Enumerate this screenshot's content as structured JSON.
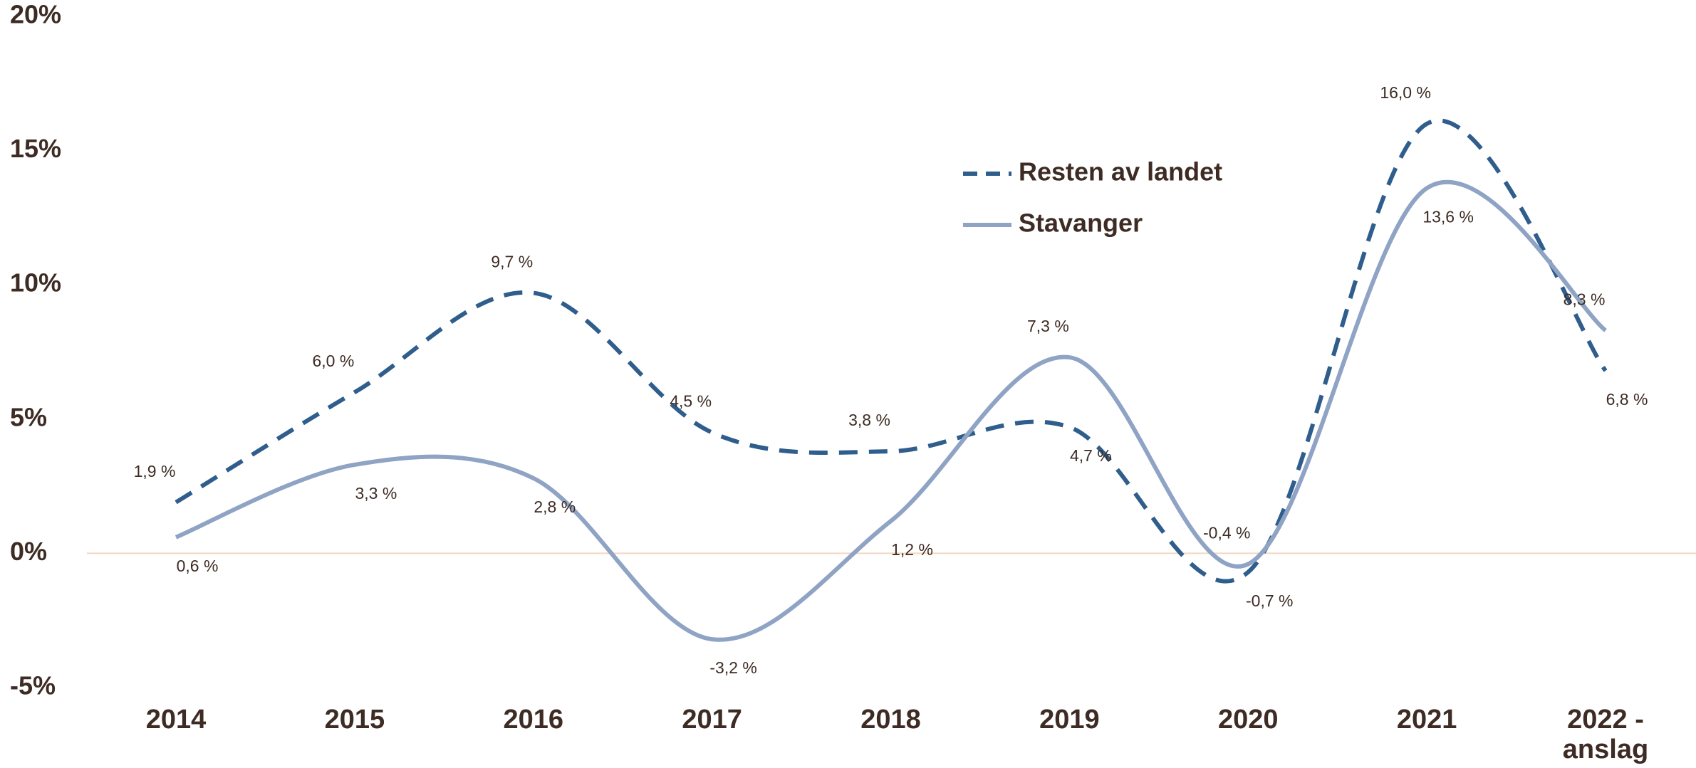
{
  "chart_data": {
    "type": "line",
    "categories": [
      "2014",
      "2015",
      "2016",
      "2017",
      "2018",
      "2019",
      "2020",
      "2021",
      "2022 - anslag"
    ],
    "series": [
      {
        "name": "Resten av landet",
        "color": "#2f5d8c",
        "dashed": true,
        "values": [
          1.9,
          6.0,
          9.7,
          4.5,
          3.8,
          4.7,
          -0.7,
          16.0,
          6.8
        ],
        "value_labels": [
          "1,9 %",
          "6,0 %",
          "9,7 %",
          "4,5 %",
          "3,8 %",
          "4,7 %",
          "-0,7 %",
          "16,0 %",
          "6,8 %"
        ]
      },
      {
        "name": "Stavanger",
        "color": "#8fa3c4",
        "dashed": false,
        "values": [
          0.6,
          3.3,
          2.8,
          -3.2,
          1.2,
          7.3,
          -0.4,
          13.6,
          8.3
        ],
        "value_labels": [
          "0,6 %",
          "3,3 %",
          "2,8 %",
          "-3,2 %",
          "1,2 %",
          "7,3 %",
          "-0,4 %",
          "13,6 %",
          "8,3 %"
        ]
      }
    ],
    "ylim": [
      -5,
      20
    ],
    "yticks": [
      {
        "value": -5,
        "label": "-5%"
      },
      {
        "value": 0,
        "label": "0%"
      },
      {
        "value": 5,
        "label": "5%"
      },
      {
        "value": 10,
        "label": "10%"
      },
      {
        "value": 15,
        "label": "15%"
      },
      {
        "value": 20,
        "label": "20%"
      }
    ]
  }
}
